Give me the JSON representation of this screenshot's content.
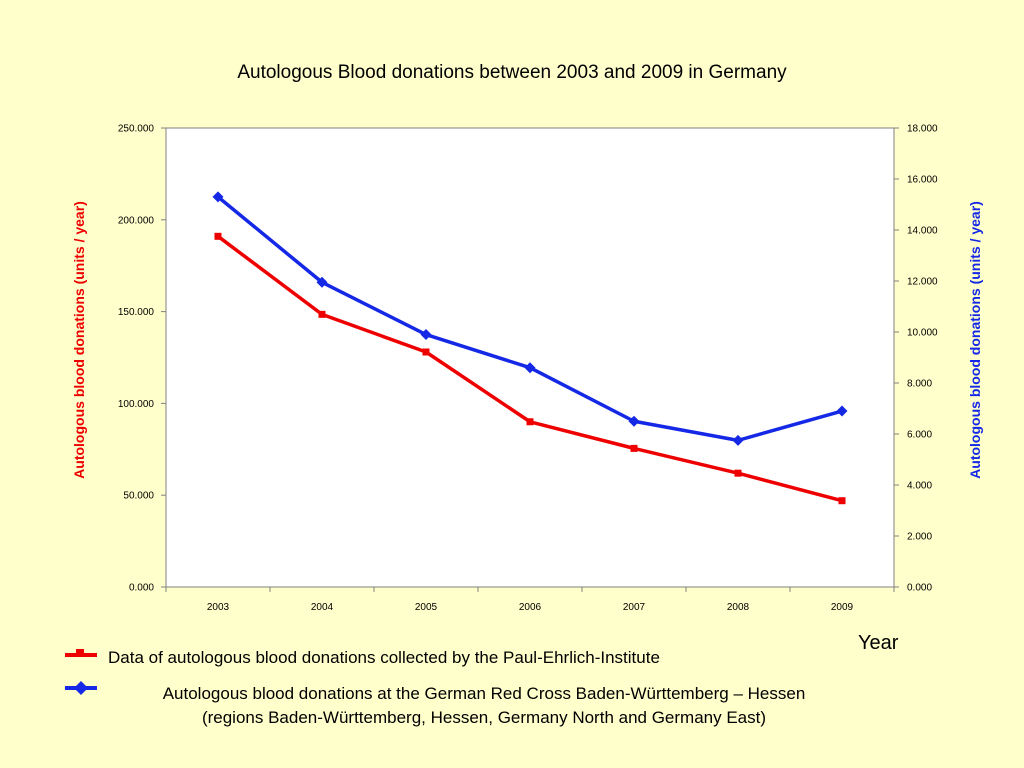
{
  "title": "Autologous Blood donations between 2003 and 2009 in Germany",
  "chart_data": {
    "type": "line",
    "title": "Autologous Blood donations between 2003 and 2009 in Germany",
    "xlabel": "Year",
    "categories": [
      "2003",
      "2004",
      "2005",
      "2006",
      "2007",
      "2008",
      "2009"
    ],
    "y_left": {
      "label": "Autologous blood donations (units / year)",
      "range": [
        0,
        250000
      ],
      "ticks": [
        "0.000",
        "50.000",
        "100.000",
        "150.000",
        "200.000",
        "250.000"
      ],
      "color": "#EE0000"
    },
    "y_right": {
      "label": "Autologous blood donations (units / year)",
      "range": [
        0,
        18000
      ],
      "ticks": [
        "0.000",
        "2.000",
        "4.000",
        "6.000",
        "8.000",
        "10.000",
        "12.000",
        "14.000",
        "16.000",
        "18.000"
      ],
      "color": "#1428E6"
    },
    "series": [
      {
        "axis": "left",
        "marker": "square",
        "color": "#EE0000",
        "values": [
          191000,
          148500,
          128000,
          90000,
          75500,
          62000,
          47000
        ]
      },
      {
        "axis": "right",
        "marker": "diamond",
        "color": "#1428E6",
        "values": [
          15300,
          11950,
          9900,
          8600,
          6500,
          5750,
          6900
        ]
      }
    ],
    "grid": false
  },
  "legend": [
    {
      "text": "Data of autologous blood donations collected by the Paul-Ehrlich-Institute",
      "color": "#EE0000",
      "marker": "square"
    },
    {
      "text": "Autologous blood donations at the German Red Cross Baden-Württemberg – Hessen",
      "text2": "(regions Baden-Württemberg, Hessen, Germany North and Germany East)",
      "color": "#1428E6",
      "marker": "diamond"
    }
  ]
}
